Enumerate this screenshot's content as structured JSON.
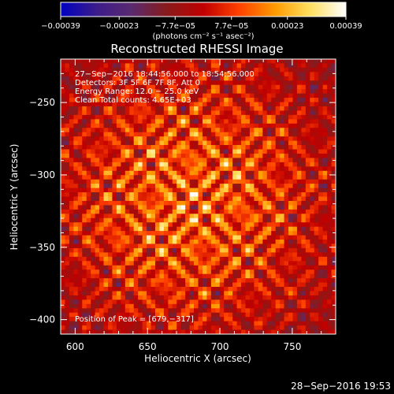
{
  "chart_data": {
    "type": "heatmap",
    "title": "Reconstructed RHESSI Image",
    "xlabel": "Heliocentric X (arcsec)",
    "ylabel": "Heliocentric Y (arcsec)",
    "xlim": [
      590,
      780
    ],
    "ylim": [
      -410,
      -220
    ],
    "x_ticks": [
      600,
      650,
      700,
      750
    ],
    "x_tick_labels": [
      "600",
      "650",
      "700",
      "750"
    ],
    "y_ticks": [
      -250,
      -300,
      -350,
      -400
    ],
    "y_tick_labels": [
      "−250",
      "−300",
      "−350",
      "−400"
    ],
    "colorbar": {
      "range": [
        -0.00039,
        0.00039
      ],
      "ticks": [
        -0.00039,
        -0.00023,
        -7.7e-05,
        7.7e-05,
        0.00023,
        0.00039
      ],
      "tick_labels": [
        "−0.00039",
        "−0.00023",
        "−7.7e−05",
        "7.7e−05",
        "0.00023",
        "0.00039"
      ],
      "unit_label": "(photons cm⁻² s⁻¹ asec⁻²)",
      "colors": [
        "#0000c0",
        "#3c1c8c",
        "#5a2a6e",
        "#8a1a1a",
        "#c00000",
        "#ff4000",
        "#ff9a00",
        "#ffe060",
        "#ffffff"
      ]
    },
    "annotations": [
      "27−Sep−2016 18:44:56.000 to 18:54:56.000",
      "Detectors: 3F 5F 6F 7F 8F, Att 0",
      "Energy Range: 12.0 − 25.0 keV",
      "Clean    Total counts: 4.65E+03"
    ],
    "peak_label": "Position of Peak = [679,−317]",
    "peak": {
      "x": 679,
      "y": -317
    },
    "timestamp": "28−Sep−2016 19:53"
  }
}
